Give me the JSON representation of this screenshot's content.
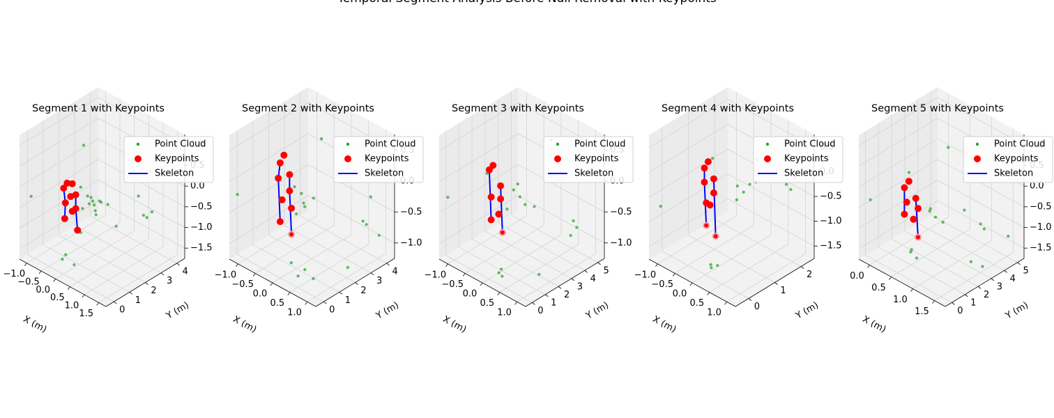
{
  "figure": {
    "suptitle": "Temporal Segment Analysis Before Null Removal with Keypoints"
  },
  "colors": {
    "point_cloud": "#2ca02c",
    "point_cloud_dark": "#006400",
    "keypoints": "#ff0000",
    "keypoints_back": "#f7a1a8",
    "skeleton": "#0000ff",
    "pane": "#f2f2f2",
    "pane_dark": "#ebebeb",
    "grid": "#d3d3d3"
  },
  "chart_data": [
    {
      "type": "scatter",
      "title": "Segment 1 with Keypoints",
      "xlabel": "X (m)",
      "ylabel": "Y (m)",
      "zlabel": "",
      "xlim": [
        -1.0,
        1.5
      ],
      "ylim": [
        -0.3,
        4.5
      ],
      "zlim": [
        -1.5,
        1.2
      ],
      "xticks": [
        "−1.0",
        "−0.5",
        "0.0",
        "0.5",
        "1.0",
        "1.5"
      ],
      "yticks": [
        "0",
        "1",
        "2",
        "3",
        "4"
      ],
      "zticks": [
        "−1.5",
        "−1.0",
        "−0.5",
        "0.0",
        "0.5",
        "1.0"
      ],
      "legend": [
        "Point Cloud",
        "Keypoints",
        "Skeleton"
      ],
      "legend_loc": "upper right",
      "keypoints": [
        [
          -0.05,
          0.6,
          0.35
        ],
        [
          0.1,
          0.6,
          0.4
        ],
        [
          -0.15,
          0.6,
          0.2
        ],
        [
          0.2,
          0.6,
          0.2
        ],
        [
          -0.1,
          0.6,
          -0.1
        ],
        [
          0.2,
          0.6,
          -0.1
        ],
        [
          -0.12,
          0.6,
          -0.45
        ],
        [
          0.25,
          0.6,
          -0.55
        ],
        [
          0.05,
          0.6,
          0.1
        ],
        [
          0.1,
          0.6,
          -0.2
        ]
      ],
      "skeleton": [
        [
          [
            -0.1,
            0.6,
            -0.1
          ],
          [
            -0.12,
            0.6,
            -0.45
          ]
        ],
        [
          [
            0.2,
            0.6,
            -0.1
          ],
          [
            0.25,
            0.6,
            -0.55
          ]
        ],
        [
          [
            -0.15,
            0.6,
            0.2
          ],
          [
            -0.1,
            0.6,
            -0.1
          ]
        ],
        [
          [
            0.2,
            0.6,
            0.2
          ],
          [
            0.2,
            0.6,
            -0.1
          ]
        ]
      ],
      "points": [
        [
          -0.9,
          0.2,
          -0.2
        ],
        [
          0.4,
          1.0,
          0.0
        ],
        [
          0.5,
          1.0,
          0.1
        ],
        [
          0.45,
          1.2,
          -0.05
        ],
        [
          0.6,
          1.3,
          0.05
        ],
        [
          0.3,
          0.8,
          -0.1
        ],
        [
          0.5,
          0.9,
          0.2
        ],
        [
          0.55,
          1.1,
          -0.2
        ],
        [
          0.2,
          0.9,
          0.3
        ],
        [
          0.7,
          1.5,
          0.0
        ],
        [
          1.4,
          2.2,
          -0.1
        ],
        [
          1.45,
          2.3,
          -0.15
        ],
        [
          1.3,
          2.1,
          0.3
        ],
        [
          1.5,
          2.5,
          -0.05
        ],
        [
          1.2,
          3.0,
          0.6
        ],
        [
          0.0,
          0.2,
          -1.2
        ],
        [
          0.05,
          0.3,
          -1.1
        ],
        [
          0.2,
          0.5,
          -1.3
        ],
        [
          0.0,
          1.5,
          1.0
        ],
        [
          0.3,
          0.7,
          -0.6
        ],
        [
          0.8,
          1.8,
          -0.5
        ],
        [
          0.35,
          1.0,
          0.15
        ],
        [
          0.55,
          1.05,
          -0.1
        ],
        [
          0.6,
          1.2,
          0.1
        ]
      ]
    },
    {
      "type": "scatter",
      "title": "Segment 2 with Keypoints",
      "xlabel": "X (m)",
      "ylabel": "Y (m)",
      "zlabel": "",
      "xlim": [
        -1.0,
        1.3
      ],
      "ylim": [
        -0.3,
        4.8
      ],
      "zlim": [
        -1.3,
        0.6
      ],
      "xticks": [
        "−1.0",
        "−0.5",
        "0.0",
        "0.5",
        "1.0"
      ],
      "yticks": [
        "0",
        "1",
        "2",
        "3",
        "4"
      ],
      "zticks": [
        "−1.0",
        "−0.5",
        "0.0",
        "0.5"
      ],
      "legend": [
        "Point Cloud",
        "Keypoints",
        "Skeleton"
      ],
      "legend_loc": "upper right",
      "keypoints": [
        [
          0.0,
          0.8,
          0.45
        ],
        [
          -0.1,
          0.8,
          0.3
        ],
        [
          0.15,
          0.8,
          0.2
        ],
        [
          -0.15,
          0.8,
          0.05
        ],
        [
          0.15,
          0.8,
          -0.05
        ],
        [
          -0.05,
          0.8,
          -0.25
        ],
        [
          0.2,
          0.8,
          -0.3
        ],
        [
          -0.1,
          0.8,
          -0.6
        ],
        [
          0.2,
          0.8,
          -0.7
        ]
      ],
      "skeleton": [
        [
          [
            -0.1,
            0.8,
            0.3
          ],
          [
            -0.15,
            0.8,
            0.05
          ]
        ],
        [
          [
            -0.15,
            0.8,
            0.05
          ],
          [
            -0.1,
            0.8,
            -0.6
          ]
        ],
        [
          [
            0.15,
            0.8,
            0.2
          ],
          [
            0.15,
            0.8,
            -0.05
          ]
        ],
        [
          [
            0.15,
            0.8,
            -0.05
          ],
          [
            0.2,
            0.8,
            -0.7
          ]
        ]
      ],
      "points": [
        [
          -0.95,
          0.1,
          -0.35
        ],
        [
          0.3,
          1.2,
          -0.1
        ],
        [
          0.35,
          1.3,
          -0.3
        ],
        [
          0.4,
          1.1,
          -0.2
        ],
        [
          0.25,
          1.0,
          -0.4
        ],
        [
          0.5,
          1.5,
          -0.15
        ],
        [
          1.2,
          3.0,
          -0.5
        ],
        [
          1.25,
          3.1,
          -0.55
        ],
        [
          1.2,
          3.5,
          -0.2
        ],
        [
          1.3,
          3.8,
          -0.8
        ],
        [
          0.5,
          0.5,
          -1.2
        ],
        [
          0.6,
          0.7,
          -1.1
        ],
        [
          0.4,
          0.3,
          -1.0
        ],
        [
          0.7,
          1.0,
          -1.25
        ],
        [
          1.0,
          2.5,
          -1.2
        ],
        [
          0.3,
          2.5,
          0.55
        ],
        [
          0.2,
          1.0,
          0.0
        ]
      ]
    },
    {
      "type": "scatter",
      "title": "Segment 3 with Keypoints",
      "xlabel": "X (m)",
      "ylabel": "Y (m)",
      "zlabel": "",
      "xlim": [
        -1.0,
        1.3
      ],
      "ylim": [
        -0.3,
        5.5
      ],
      "zlim": [
        -1.3,
        0.6
      ],
      "xticks": [
        "−1.0",
        "−0.5",
        "0.0",
        "0.5",
        "1.0"
      ],
      "yticks": [
        "0",
        "1",
        "2",
        "3",
        "4",
        "5"
      ],
      "zticks": [
        "−1.0",
        "−0.5",
        "0.0",
        "0.5"
      ],
      "legend": [
        "Point Cloud",
        "Keypoints",
        "Skeleton"
      ],
      "legend_loc": "upper right",
      "keypoints": [
        [
          0.0,
          0.9,
          0.3
        ],
        [
          -0.1,
          0.9,
          0.2
        ],
        [
          0.2,
          0.9,
          0.05
        ],
        [
          -0.05,
          0.9,
          -0.2
        ],
        [
          0.2,
          0.9,
          -0.15
        ],
        [
          0.15,
          0.9,
          -0.4
        ],
        [
          -0.05,
          0.9,
          -0.55
        ],
        [
          0.25,
          0.9,
          -0.65
        ]
      ],
      "skeleton": [
        [
          [
            -0.1,
            0.9,
            0.2
          ],
          [
            -0.05,
            0.9,
            -0.55
          ]
        ],
        [
          [
            0.2,
            0.9,
            0.05
          ],
          [
            0.25,
            0.9,
            -0.65
          ]
        ]
      ],
      "points": [
        [
          -0.95,
          0.2,
          -0.4
        ],
        [
          0.5,
          1.5,
          -0.1
        ],
        [
          0.6,
          1.6,
          -0.2
        ],
        [
          0.4,
          1.3,
          0.0
        ],
        [
          0.55,
          1.2,
          0.15
        ],
        [
          0.3,
          1.1,
          -0.3
        ],
        [
          0.7,
          2.0,
          -0.25
        ],
        [
          1.2,
          3.5,
          -0.5
        ],
        [
          1.25,
          3.6,
          -0.6
        ],
        [
          1.2,
          3.3,
          -0.7
        ],
        [
          0.3,
          0.5,
          -1.2
        ],
        [
          0.35,
          0.6,
          -1.25
        ],
        [
          0.4,
          0.4,
          -1.1
        ],
        [
          0.9,
          1.8,
          -1.2
        ],
        [
          0.6,
          3.5,
          0.55
        ],
        [
          -0.2,
          1.0,
          0.1
        ]
      ]
    },
    {
      "type": "scatter",
      "title": "Segment 4 with Keypoints",
      "xlabel": "X (m)",
      "ylabel": "Y (m)",
      "zlabel": "",
      "xlim": [
        -1.0,
        1.3
      ],
      "ylim": [
        -0.3,
        2.9
      ],
      "zlim": [
        -1.6,
        0.6
      ],
      "xticks": [
        "−1.0",
        "−0.5",
        "0.0",
        "0.5",
        "1.0"
      ],
      "yticks": [
        "0",
        "1",
        "2"
      ],
      "zticks": [
        "−1.5",
        "−1.0",
        "−0.5",
        "0.0",
        "0.5"
      ],
      "legend": [
        "Point Cloud",
        "Keypoints",
        "Skeleton"
      ],
      "legend_loc": "upper right",
      "keypoints": [
        [
          0.05,
          0.5,
          0.3
        ],
        [
          -0.05,
          0.5,
          0.15
        ],
        [
          0.2,
          0.5,
          0.05
        ],
        [
          -0.05,
          0.5,
          -0.1
        ],
        [
          0.2,
          0.5,
          -0.2
        ],
        [
          0.0,
          0.5,
          -0.45
        ],
        [
          0.1,
          0.5,
          -0.45
        ],
        [
          0.0,
          0.5,
          -0.85
        ],
        [
          0.25,
          0.5,
          -0.95
        ]
      ],
      "skeleton": [
        [
          [
            -0.05,
            0.5,
            0.15
          ],
          [
            -0.05,
            0.5,
            -0.1
          ]
        ],
        [
          [
            -0.05,
            0.5,
            -0.1
          ],
          [
            0.0,
            0.5,
            -0.85
          ]
        ],
        [
          [
            0.2,
            0.5,
            0.05
          ],
          [
            0.25,
            0.5,
            -0.95
          ]
        ]
      ],
      "points": [
        [
          -0.95,
          0.1,
          -0.75
        ],
        [
          0.5,
          1.0,
          -0.1
        ],
        [
          0.6,
          1.1,
          -0.2
        ],
        [
          0.7,
          1.2,
          -0.05
        ],
        [
          0.55,
          0.9,
          -0.3
        ],
        [
          0.8,
          1.3,
          0.0
        ],
        [
          1.15,
          2.0,
          -0.1
        ],
        [
          1.2,
          2.1,
          -0.2
        ],
        [
          1.25,
          2.2,
          0.0
        ],
        [
          0.2,
          0.4,
          -1.5
        ],
        [
          0.3,
          0.5,
          -1.45
        ],
        [
          0.25,
          0.3,
          -1.4
        ],
        [
          0.1,
          0.6,
          0.35
        ],
        [
          0.7,
          1.5,
          0.3
        ]
      ]
    },
    {
      "type": "scatter",
      "title": "Segment 5 with Keypoints",
      "xlabel": "X (m)",
      "ylabel": "Y (m)",
      "zlabel": "",
      "xlim": [
        -0.3,
        1.6
      ],
      "ylim": [
        -0.3,
        5.3
      ],
      "zlim": [
        -1.6,
        1.2
      ],
      "xticks": [
        "0.0",
        "0.5",
        "1.0",
        "1.5"
      ],
      "yticks": [
        "0",
        "1",
        "2",
        "3",
        "4",
        "5"
      ],
      "zticks": [
        "−1.5",
        "−1.0",
        "−0.5",
        "0.0",
        "0.5",
        "1.0"
      ],
      "legend": [
        "Point Cloud",
        "Keypoints",
        "Skeleton"
      ],
      "legend_loc": "upper right",
      "keypoints": [
        [
          0.4,
          1.0,
          0.3
        ],
        [
          0.3,
          1.0,
          0.1
        ],
        [
          0.55,
          1.0,
          0.0
        ],
        [
          0.35,
          1.0,
          -0.2
        ],
        [
          0.6,
          1.0,
          -0.2
        ],
        [
          0.5,
          1.0,
          -0.5
        ],
        [
          0.3,
          1.0,
          -0.5
        ],
        [
          0.6,
          1.0,
          -0.85
        ]
      ],
      "skeleton": [
        [
          [
            0.3,
            1.0,
            0.1
          ],
          [
            0.3,
            1.0,
            -0.5
          ]
        ],
        [
          [
            0.55,
            1.0,
            0.0
          ],
          [
            0.6,
            1.0,
            -0.85
          ]
        ]
      ],
      "points": [
        [
          -0.2,
          0.2,
          -0.3
        ],
        [
          0.7,
          1.5,
          -0.3
        ],
        [
          0.8,
          1.6,
          -0.4
        ],
        [
          0.75,
          1.4,
          -0.2
        ],
        [
          0.9,
          1.8,
          -0.5
        ],
        [
          1.2,
          3.5,
          -0.7
        ],
        [
          1.25,
          3.6,
          -0.8
        ],
        [
          1.5,
          4.5,
          -1.0
        ],
        [
          0.5,
          0.8,
          -1.2
        ],
        [
          0.6,
          0.9,
          -1.3
        ],
        [
          0.55,
          0.7,
          -1.1
        ],
        [
          1.3,
          2.5,
          -1.3
        ],
        [
          1.4,
          3.0,
          -1.45
        ],
        [
          0.8,
          2.5,
          1.0
        ],
        [
          0.4,
          1.0,
          0.5
        ],
        [
          1.0,
          3.0,
          -0.4
        ]
      ]
    }
  ]
}
